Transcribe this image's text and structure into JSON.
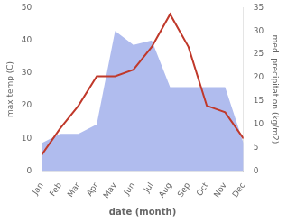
{
  "chart_data": {
    "type": "line",
    "categories": [
      "Jan",
      "Feb",
      "Mar",
      "Apr",
      "May",
      "Jun",
      "Jul",
      "Aug",
      "Sep",
      "Oct",
      "Nov",
      "Dec"
    ],
    "xlabel": "date (month)",
    "ylabel": "max temp (C)",
    "y2label": "med. precipitation (kg/m2)",
    "series": [
      {
        "type": "area",
        "axis": "y2",
        "color": "#b0bcee",
        "values": [
          6,
          8,
          8,
          10,
          30,
          27,
          28,
          18,
          18,
          18,
          18,
          6
        ]
      },
      {
        "type": "line",
        "color": "#c0392b",
        "values": [
          5,
          13,
          20,
          29,
          29,
          31,
          38,
          48,
          38,
          20,
          18,
          10
        ]
      }
    ],
    "ylim": [
      0,
      50
    ],
    "yticks": [
      0,
      10,
      20,
      30,
      40,
      50
    ],
    "y2lim": [
      0,
      35
    ],
    "y2ticks": [
      0,
      5,
      10,
      15,
      20,
      25,
      30,
      35
    ],
    "grid": false
  }
}
